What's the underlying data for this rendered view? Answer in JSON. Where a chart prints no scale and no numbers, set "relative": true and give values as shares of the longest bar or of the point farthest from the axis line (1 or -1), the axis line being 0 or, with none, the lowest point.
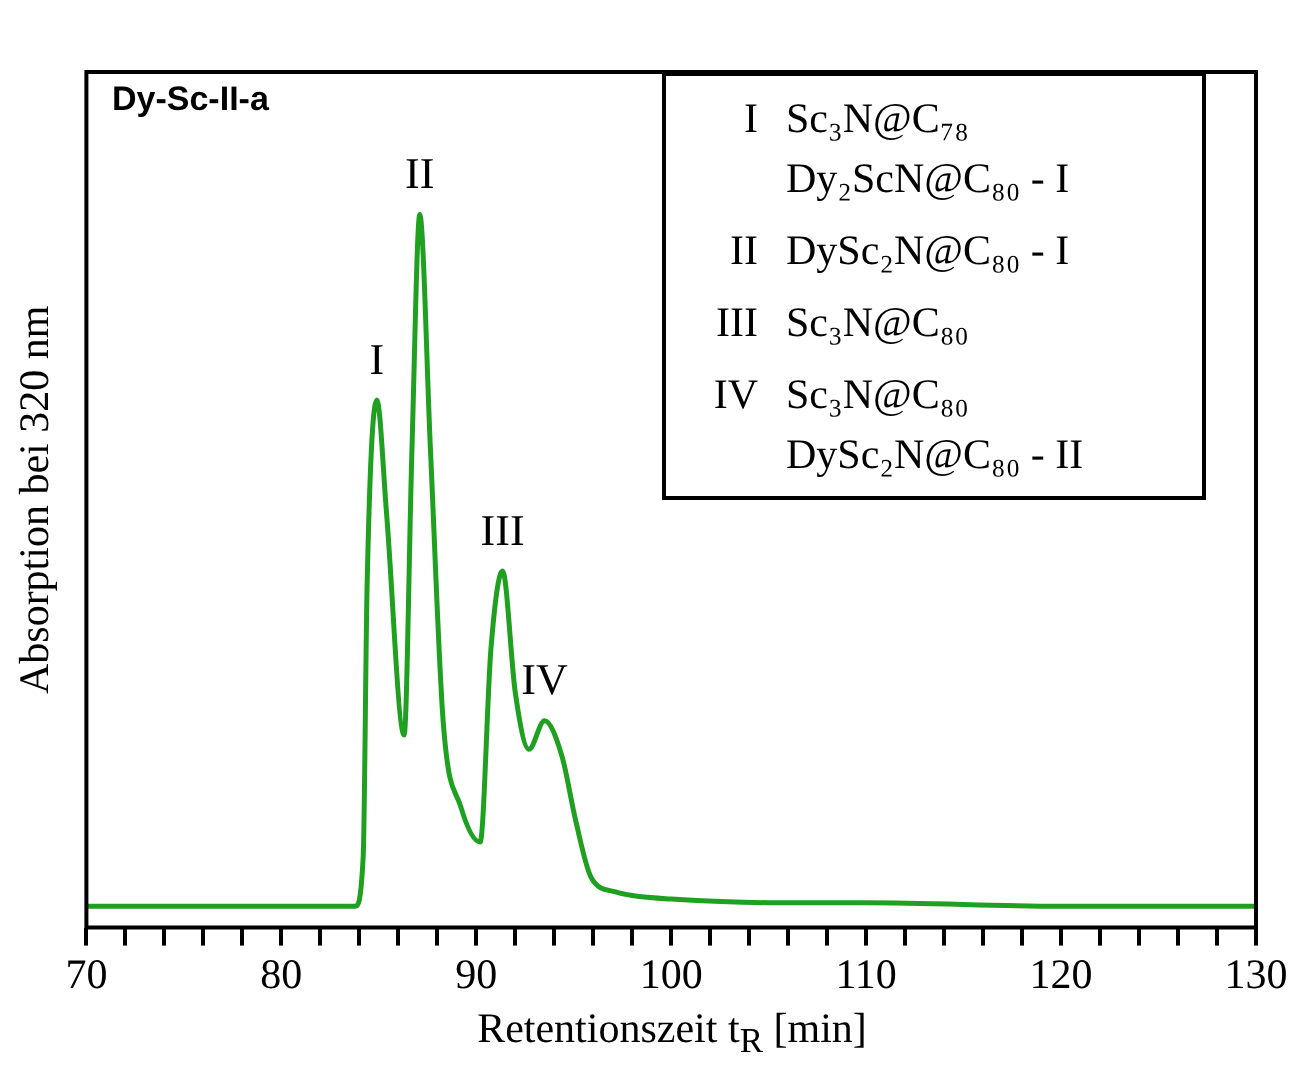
{
  "chart_data": {
    "type": "line",
    "title": "Dy-Sc-II-a",
    "xlabel": "Retentionszeit t$_{R}$ [min]",
    "ylabel": "Absorption bei 320 nm",
    "relative": true,
    "x": [
      70,
      75,
      80,
      83,
      83.8,
      84.2,
      84.4,
      84.9,
      85.4,
      86.3,
      86.7,
      87.1,
      87.65,
      88.3,
      89.2,
      90.2,
      90.75,
      91.35,
      92.0,
      92.7,
      93.5,
      94.4,
      95.1,
      95.9,
      97.15,
      98,
      100,
      105,
      110,
      120,
      130
    ],
    "series": [
      {
        "color": "#20a020",
        "values": [
          0.03,
          0.03,
          0.03,
          0.03,
          0.03,
          0.1,
          0.48,
          0.74,
          0.58,
          0.27,
          0.67,
          1.0,
          0.67,
          0.29,
          0.17,
          0.12,
          0.39,
          0.5,
          0.33,
          0.25,
          0.29,
          0.24,
          0.15,
          0.07,
          0.05,
          0.045,
          0.04,
          0.035,
          0.035,
          0.03,
          0.03
        ]
      }
    ],
    "xlim": [
      70,
      130
    ],
    "xticks": [
      70,
      {
        "value": 72,
        "label": null
      },
      {
        "value": 74,
        "label": null
      },
      {
        "value": 76,
        "label": null
      },
      {
        "value": 78,
        "label": null
      },
      80,
      {
        "value": 82,
        "label": null
      },
      {
        "value": 84,
        "label": null
      },
      {
        "value": 86,
        "label": null
      },
      {
        "value": 88,
        "label": null
      },
      90,
      {
        "value": 92,
        "label": null
      },
      {
        "value": 94,
        "label": null
      },
      {
        "value": 96,
        "label": null
      },
      {
        "value": 98,
        "label": null
      },
      100,
      {
        "value": 102,
        "label": null
      },
      {
        "value": 104,
        "label": null
      },
      {
        "value": 106,
        "label": null
      },
      {
        "value": 108,
        "label": null
      },
      110,
      {
        "value": 112,
        "label": null
      },
      {
        "value": 114,
        "label": null
      },
      {
        "value": 116,
        "label": null
      },
      {
        "value": 118,
        "label": null
      },
      120,
      {
        "value": 122,
        "label": null
      },
      {
        "value": 124,
        "label": null
      },
      {
        "value": 126,
        "label": null
      },
      {
        "value": 128,
        "label": null
      },
      130
    ],
    "grid": false,
    "legend": false,
    "marker": "none",
    "line_style": "solid",
    "annotations": [
      {
        "text": "I",
        "x": 84.9,
        "y": 0.74
      },
      {
        "text": "II",
        "x": 87.1,
        "y": 1.0
      },
      {
        "text": "III",
        "x": 91.35,
        "y": 0.5
      },
      {
        "text": "IV",
        "x": 93.5,
        "y": 0.29
      },
      "I Sc₃N@C₇₈",
      "Dy₂ScN@C₈₀ - I",
      "II DySc₂N@C₈₀ - I",
      "III Sc₃N@C₈₀",
      "IV Sc₃N@C₈₀",
      "DySc₂N@C₈₀ - II"
    ]
  }
}
